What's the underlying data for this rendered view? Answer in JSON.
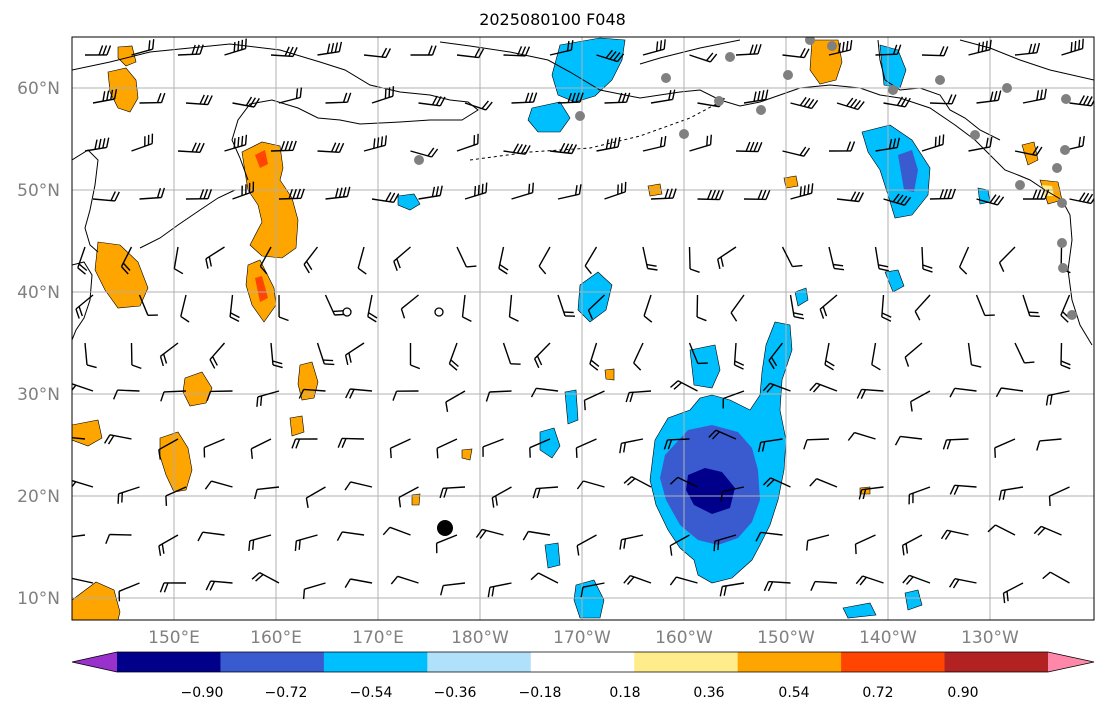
{
  "title": "2025080100 F048",
  "lat_labels": [
    "60°N",
    "50°N",
    "40°N",
    "30°N",
    "20°N",
    "10°N"
  ],
  "lon_labels": [
    "150°E",
    "160°E",
    "170°E",
    "180°W",
    "170°W",
    "160°W",
    "150°W",
    "140°W",
    "130°W"
  ],
  "colorbar": {
    "colors": [
      "#9932cc",
      "#00008b",
      "#3a5bcf",
      "#00bfff",
      "#b0e0fa",
      "#ffffff",
      "#ffec8b",
      "#ffa500",
      "#ff4500",
      "#b22222",
      "#ff88aa"
    ],
    "labels": [
      "−0.90",
      "−0.72",
      "−0.54",
      "−0.36",
      "−0.18",
      "0.18",
      "0.36",
      "0.54",
      "0.72",
      "0.90"
    ]
  },
  "colors": {
    "grid": "#b0b0b0",
    "coast": "#000000",
    "station": "#808080",
    "barb": "#000000"
  }
}
